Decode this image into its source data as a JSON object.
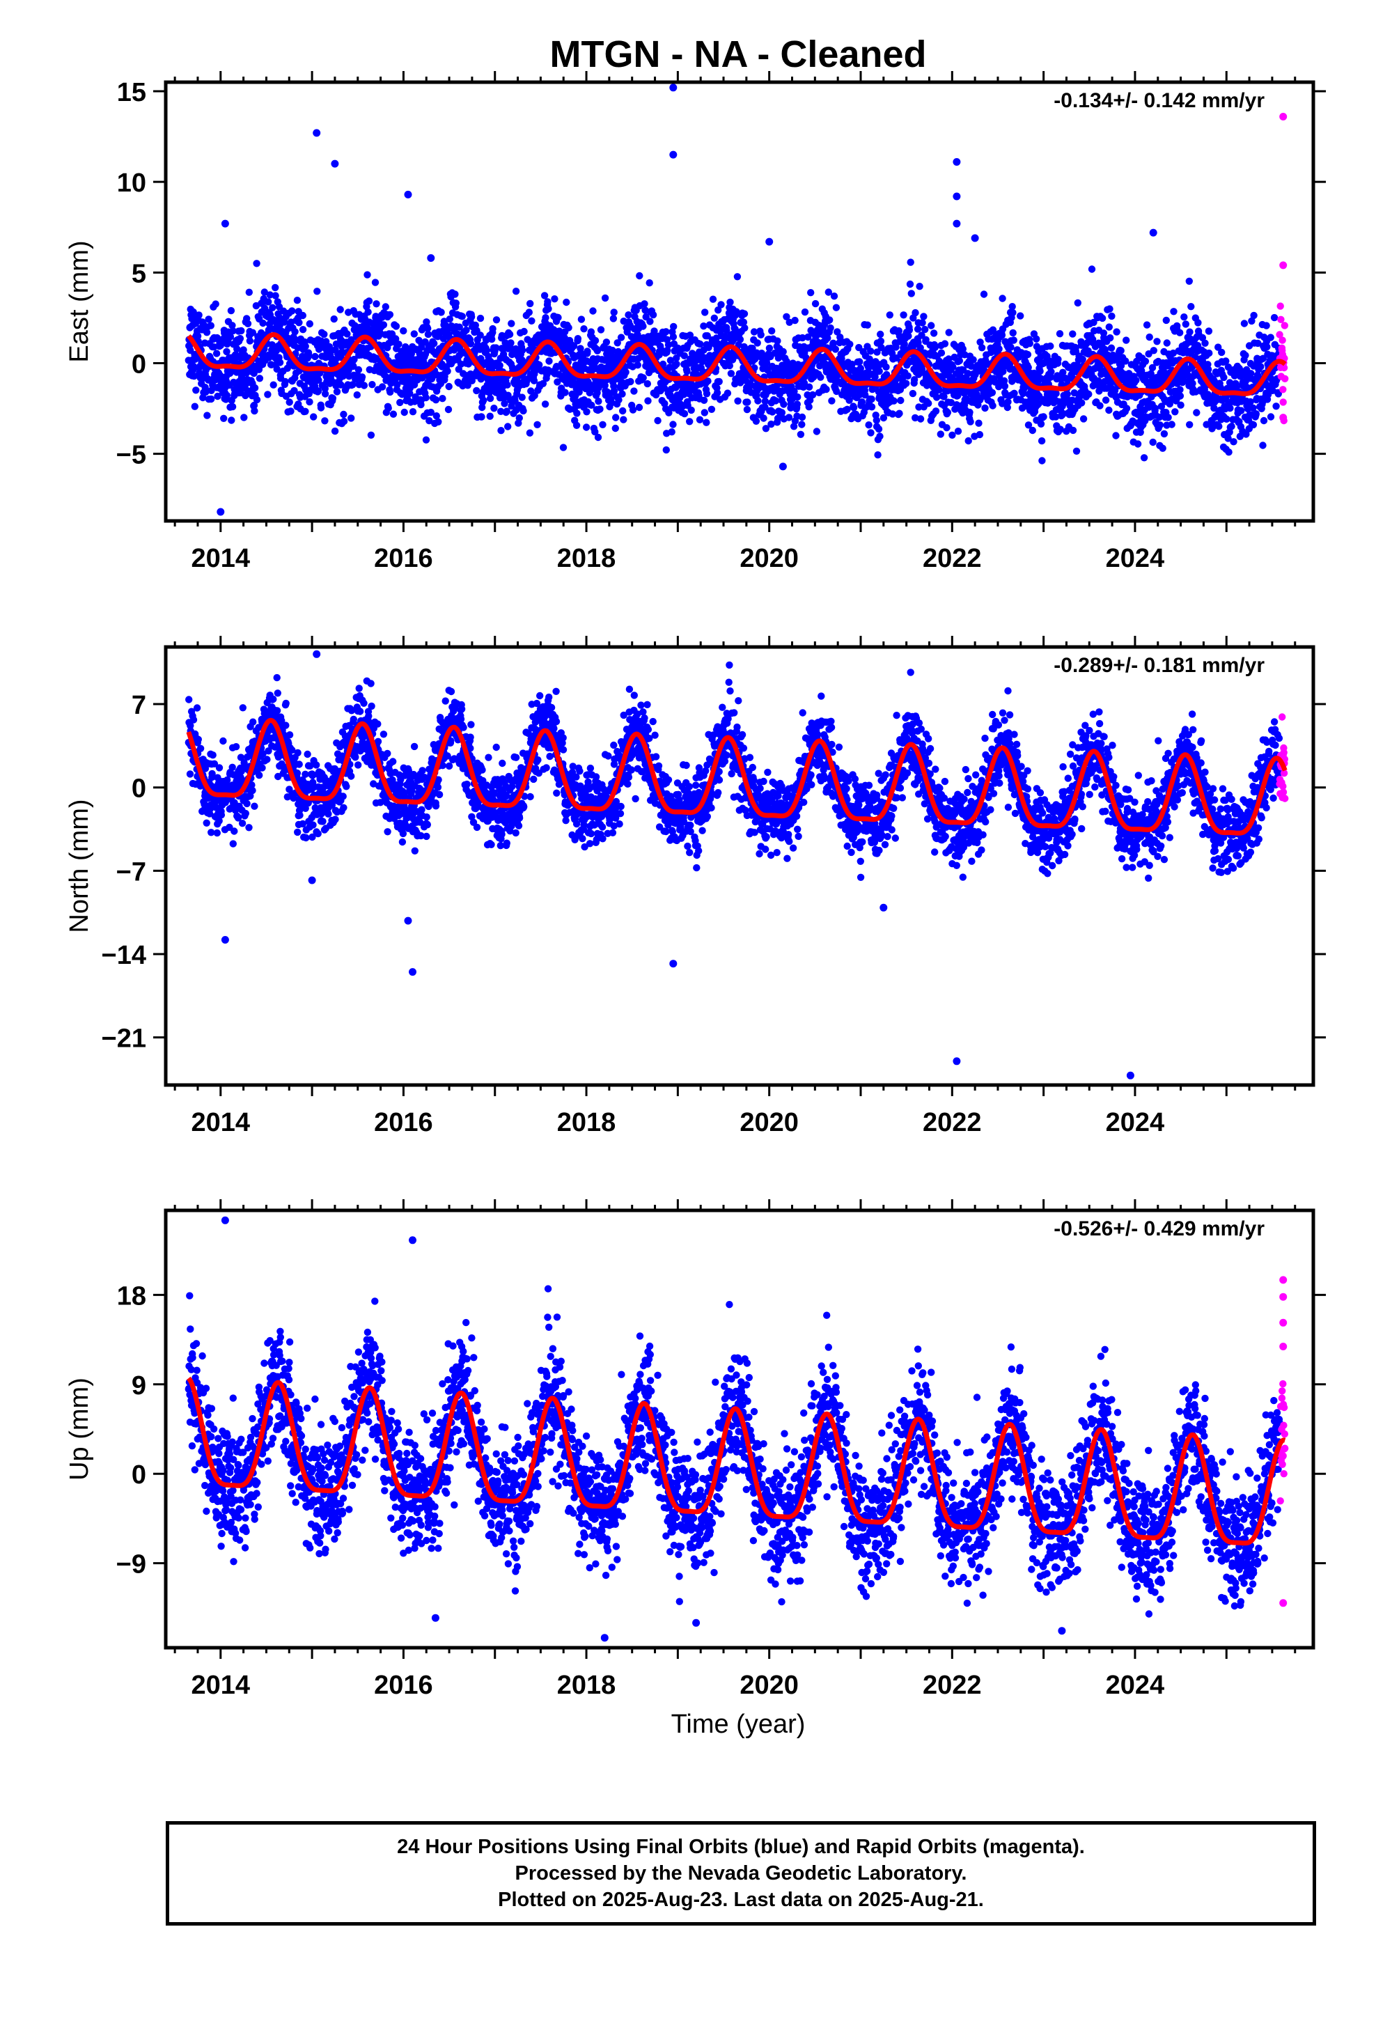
{
  "title": "MTGN  - NA - Cleaned",
  "xlabel": "Time (year)",
  "footer": {
    "line1": "24 Hour Positions Using Final Orbits (blue) and Rapid Orbits (magenta).",
    "line2": "Processed by the Nevada Geodetic Laboratory.",
    "line3": "Plotted on 2025-Aug-23. Last data on 2025-Aug-21."
  },
  "colors": {
    "final": "#0000ff",
    "rapid": "#ff00ff",
    "model": "#ff0000"
  },
  "chart_data": [
    {
      "type": "scatter",
      "name": "east",
      "ylabel": "East (mm)",
      "rate_text": "-0.134+/- 0.142 mm/yr",
      "xlim": [
        2013.4,
        2025.95
      ],
      "ylim": [
        -8.7,
        15.5
      ],
      "xticks": [
        2014,
        2016,
        2018,
        2020,
        2022,
        2024
      ],
      "yticks": [
        -5,
        0,
        5,
        10,
        15
      ],
      "data_start": 2013.65,
      "data_end": 2025.64,
      "rapid_start": 2025.58,
      "model": {
        "intercept": 0.5,
        "trend": -0.134,
        "annual_amp": 0.9,
        "annual_phase": 0.58,
        "semiannual_amp": 0.3,
        "scatter": 1.3
      },
      "outliers": [
        {
          "x": 2014.0,
          "y": -8.2
        },
        {
          "x": 2014.05,
          "y": 7.7
        },
        {
          "x": 2015.05,
          "y": 12.7
        },
        {
          "x": 2015.25,
          "y": 11.0
        },
        {
          "x": 2016.05,
          "y": 9.3
        },
        {
          "x": 2016.3,
          "y": 5.8
        },
        {
          "x": 2018.95,
          "y": 15.2
        },
        {
          "x": 2018.95,
          "y": 11.5
        },
        {
          "x": 2020.0,
          "y": 6.7
        },
        {
          "x": 2020.15,
          "y": -5.7
        },
        {
          "x": 2022.05,
          "y": 11.1
        },
        {
          "x": 2022.05,
          "y": 9.2
        },
        {
          "x": 2022.05,
          "y": 7.7
        },
        {
          "x": 2022.25,
          "y": 6.9
        },
        {
          "x": 2024.2,
          "y": 7.2
        },
        {
          "x": 2025.62,
          "y": 13.6
        },
        {
          "x": 2025.62,
          "y": 5.4
        },
        {
          "x": 2025.62,
          "y": -3.0
        }
      ]
    },
    {
      "type": "scatter",
      "name": "north",
      "ylabel": "North (mm)",
      "rate_text": "-0.289+/- 0.181 mm/yr",
      "xlim": [
        2013.4,
        2025.95
      ],
      "ylim": [
        -25,
        11.8
      ],
      "xticks": [
        2014,
        2016,
        2018,
        2020,
        2022,
        2024
      ],
      "yticks": [
        -21,
        -14,
        -7,
        0,
        7
      ],
      "data_start": 2013.65,
      "data_end": 2025.64,
      "rapid_start": 2025.58,
      "model": {
        "intercept": 1.8,
        "trend": -0.289,
        "annual_amp": 3.2,
        "annual_phase": 0.55,
        "semiannual_amp": 0.9,
        "scatter": 1.6
      },
      "outliers": [
        {
          "x": 2014.05,
          "y": -12.8
        },
        {
          "x": 2015.05,
          "y": 11.2
        },
        {
          "x": 2016.05,
          "y": -11.2
        },
        {
          "x": 2016.1,
          "y": -15.5
        },
        {
          "x": 2018.95,
          "y": -14.8
        },
        {
          "x": 2021.25,
          "y": -10.1
        },
        {
          "x": 2022.05,
          "y": -23.0
        },
        {
          "x": 2023.95,
          "y": -24.2
        },
        {
          "x": 2015.0,
          "y": -7.8
        }
      ]
    },
    {
      "type": "scatter",
      "name": "up",
      "ylabel": "Up (mm)",
      "rate_text": "-0.526+/- 0.429 mm/yr",
      "xlim": [
        2013.4,
        2025.95
      ],
      "ylim": [
        -17.5,
        26.5
      ],
      "xticks": [
        2014,
        2016,
        2018,
        2020,
        2022,
        2024
      ],
      "yticks": [
        -9,
        0,
        9,
        18
      ],
      "data_start": 2013.65,
      "data_end": 2025.64,
      "rapid_start": 2025.58,
      "model": {
        "intercept": 3.0,
        "trend": -0.526,
        "annual_amp": 5.3,
        "annual_phase": 0.63,
        "semiannual_amp": 1.4,
        "scatter": 3.0
      },
      "outliers": [
        {
          "x": 2014.05,
          "y": 25.5
        },
        {
          "x": 2016.1,
          "y": 23.5
        },
        {
          "x": 2016.35,
          "y": -14.5
        },
        {
          "x": 2018.2,
          "y": -16.5
        },
        {
          "x": 2019.2,
          "y": -15.0
        },
        {
          "x": 2023.2,
          "y": -15.8
        },
        {
          "x": 2025.62,
          "y": 19.5
        },
        {
          "x": 2025.62,
          "y": 17.8
        },
        {
          "x": 2025.62,
          "y": 15.2
        },
        {
          "x": 2025.62,
          "y": 12.8
        },
        {
          "x": 2025.62,
          "y": -13.0
        }
      ]
    }
  ]
}
